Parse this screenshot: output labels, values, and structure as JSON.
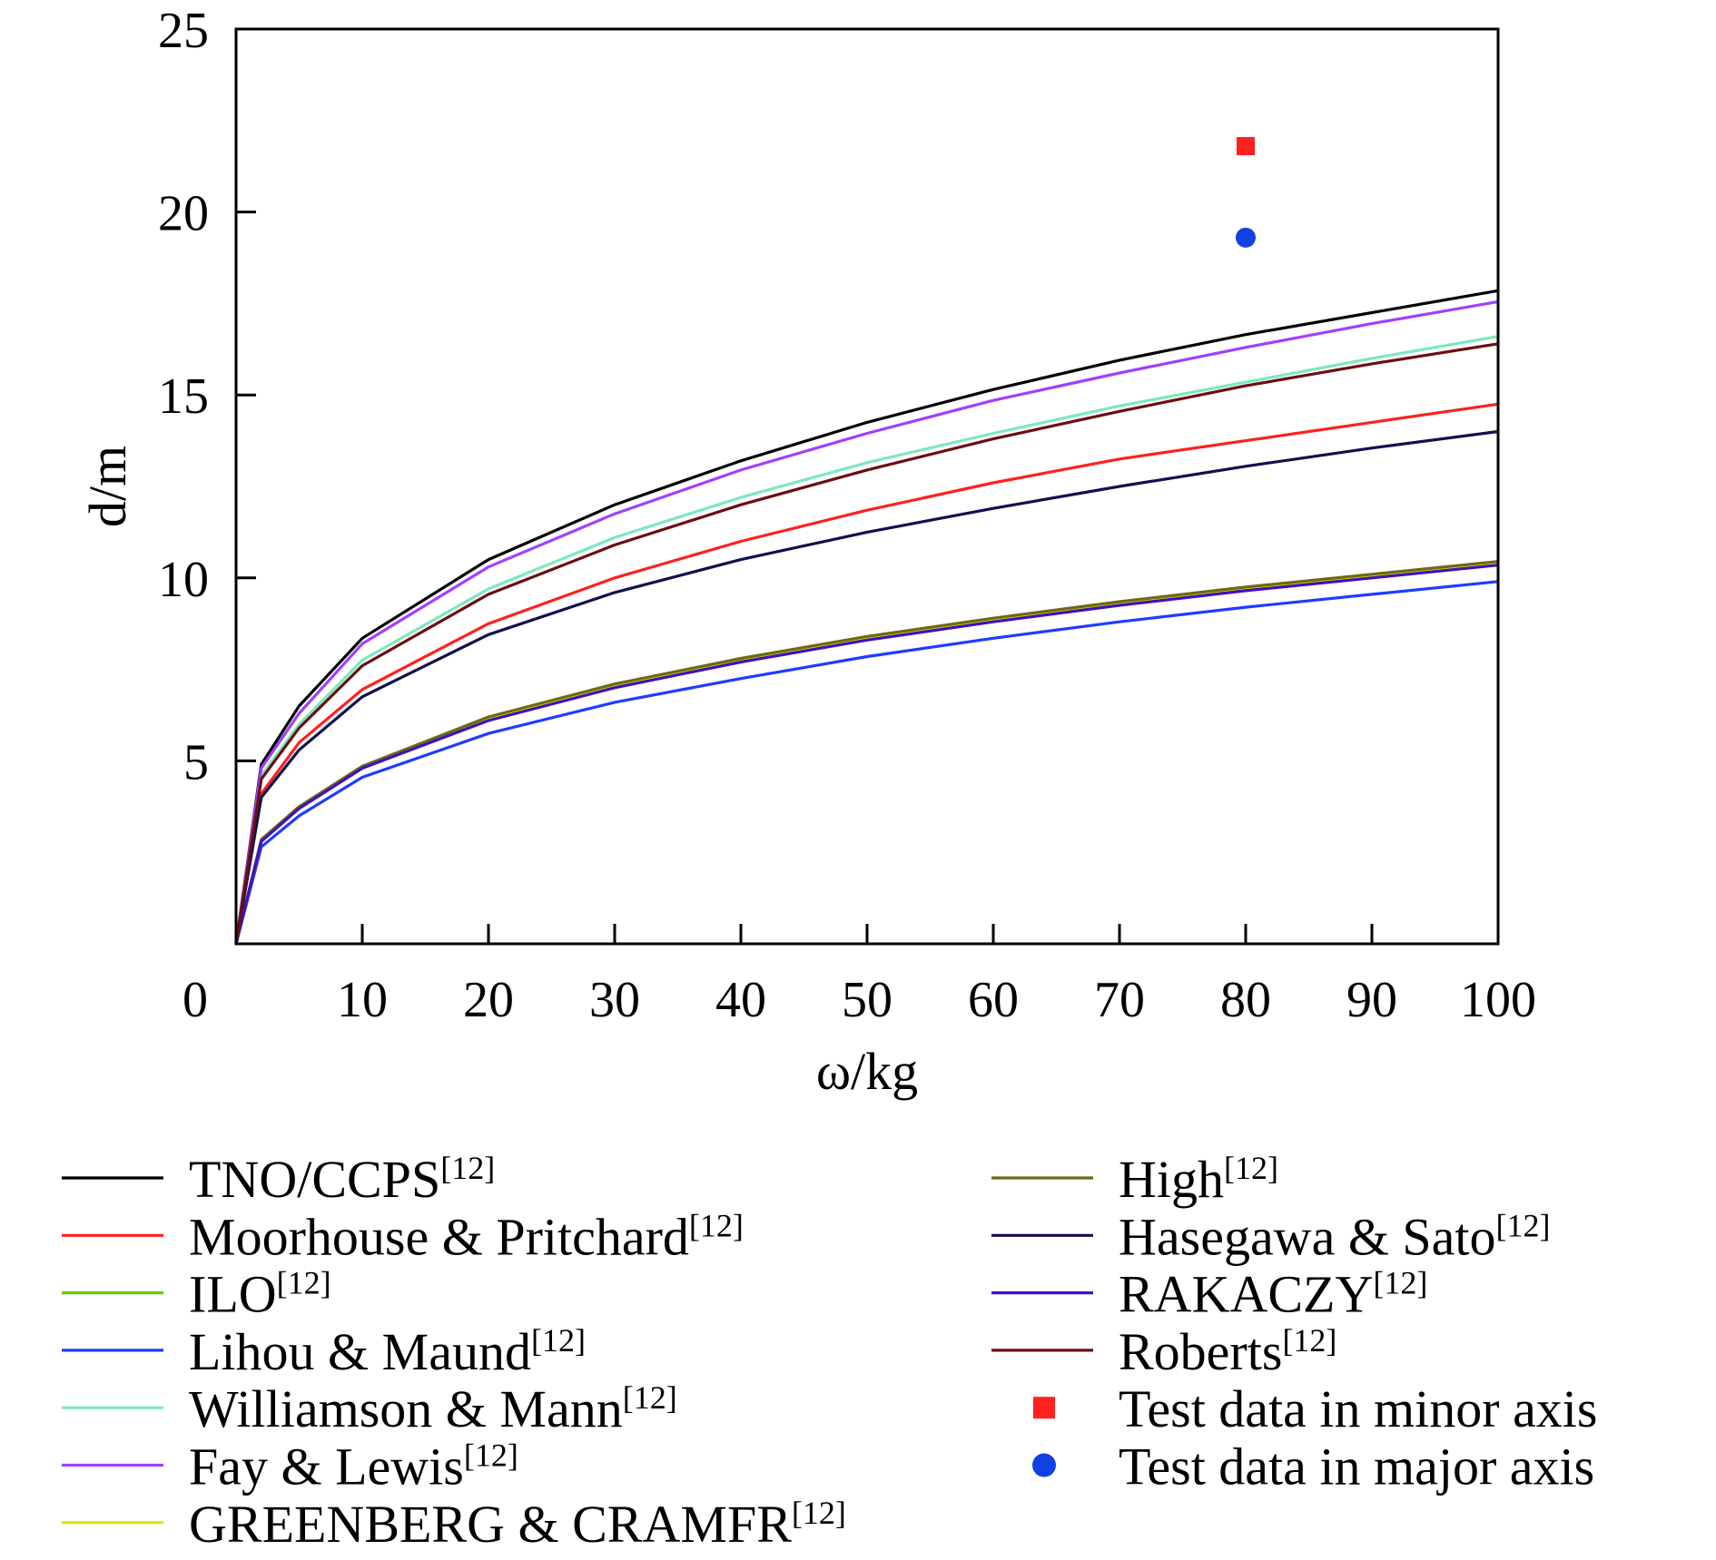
{
  "chart_data": {
    "type": "line",
    "xlabel": "ω/kg",
    "ylabel": "d/m",
    "xlim": [
      0,
      100
    ],
    "ylim": [
      0,
      25
    ],
    "x_ticks": [
      "0",
      "10",
      "20",
      "30",
      "40",
      "50",
      "60",
      "70",
      "80",
      "90",
      "100"
    ],
    "y_ticks": [
      "5",
      "10",
      "15",
      "20",
      "25"
    ],
    "grid": false,
    "legend_position": "bottom",
    "x": [
      0,
      2,
      5,
      10,
      20,
      30,
      40,
      50,
      60,
      70,
      80,
      90,
      100
    ],
    "series": [
      {
        "name": "TNO/CCPS",
        "ref": "[12]",
        "color": "#000000",
        "values": [
          0,
          4.9,
          6.5,
          8.35,
          10.5,
          12.0,
          13.2,
          14.25,
          15.15,
          15.95,
          16.65,
          17.25,
          17.85
        ]
      },
      {
        "name": "Moorhouse & Pritchard",
        "ref": "[12]",
        "color": "#ff2020",
        "values": [
          0,
          4.1,
          5.5,
          6.95,
          8.75,
          10.0,
          11.0,
          11.85,
          12.6,
          13.25,
          13.75,
          14.25,
          14.75
        ]
      },
      {
        "name": "ILO",
        "ref": "[12]",
        "color": "#66cc00",
        "values": [
          0,
          2.8,
          3.7,
          4.8,
          6.15,
          7.05,
          7.75,
          8.35,
          8.85,
          9.3,
          9.7,
          10.05,
          10.4
        ]
      },
      {
        "name": "Lihou & Maund",
        "ref": "[12]",
        "color": "#1e3cff",
        "values": [
          0,
          2.65,
          3.5,
          4.55,
          5.75,
          6.6,
          7.25,
          7.85,
          8.35,
          8.8,
          9.2,
          9.55,
          9.9
        ]
      },
      {
        "name": "Williamson & Mann",
        "ref": "[12]",
        "color": "#7ce8c0",
        "values": [
          0,
          4.6,
          6.0,
          7.75,
          9.7,
          11.1,
          12.2,
          13.15,
          13.95,
          14.7,
          15.35,
          16.0,
          16.6
        ]
      },
      {
        "name": "Fay & Lewis",
        "ref": "[12]",
        "color": "#a040ff",
        "values": [
          0,
          4.8,
          6.3,
          8.2,
          10.3,
          11.75,
          12.95,
          13.95,
          14.85,
          15.6,
          16.3,
          16.95,
          17.55
        ]
      },
      {
        "name": "GREENBERG & CRAMFR",
        "ref": "[12]",
        "color": "#e0e000",
        "values": [
          0,
          2.8,
          3.7,
          4.8,
          6.15,
          7.05,
          7.75,
          8.35,
          8.85,
          9.3,
          9.7,
          10.05,
          10.4
        ]
      },
      {
        "name": "High",
        "ref": "[12]",
        "color": "#6b6b10",
        "values": [
          0,
          2.85,
          3.75,
          4.85,
          6.2,
          7.1,
          7.8,
          8.4,
          8.9,
          9.35,
          9.75,
          10.1,
          10.45
        ]
      },
      {
        "name": "Hasegawa & Sato",
        "ref": "[12]",
        "color": "#101050",
        "values": [
          0,
          4.0,
          5.3,
          6.75,
          8.45,
          9.6,
          10.5,
          11.25,
          11.9,
          12.5,
          13.05,
          13.55,
          14.0
        ]
      },
      {
        "name": "RAKACZY",
        "ref": "[12]",
        "color": "#4010c0",
        "values": [
          0,
          2.8,
          3.7,
          4.8,
          6.1,
          7.0,
          7.7,
          8.3,
          8.8,
          9.25,
          9.65,
          10.0,
          10.35
        ]
      },
      {
        "name": "Roberts",
        "ref": "[12]",
        "color": "#6b0f0f",
        "values": [
          0,
          4.5,
          5.9,
          7.6,
          9.55,
          10.9,
          12.0,
          12.95,
          13.8,
          14.55,
          15.25,
          15.85,
          16.4
        ]
      }
    ],
    "points": [
      {
        "name": "Test data in minor axis",
        "x": 80,
        "y": 21.8,
        "marker": "square",
        "color": "#ff2020"
      },
      {
        "name": "Test data in major axis",
        "x": 80,
        "y": 19.3,
        "marker": "circle",
        "color": "#1040e0"
      }
    ]
  }
}
